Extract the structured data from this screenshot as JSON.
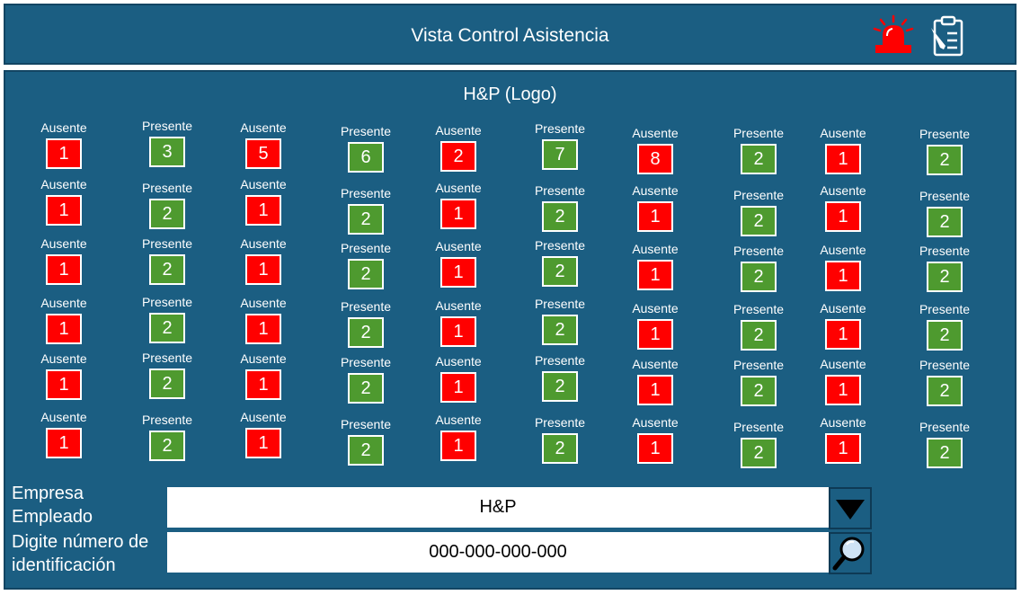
{
  "header": {
    "title": "Vista Control Asistencia",
    "alarm_icon": "alarm-siren-icon",
    "clipboard_icon": "clipboard-edit-icon"
  },
  "main": {
    "logo_text": "H&P (Logo)"
  },
  "colors": {
    "background": "#1b5e82",
    "absent": "#ff0000",
    "present": "#4e9a2f"
  },
  "attendance": {
    "columns": [
      {
        "cells": [
          {
            "status": "Ausente",
            "count": "1"
          },
          {
            "status": "Ausente",
            "count": "1"
          },
          {
            "status": "Ausente",
            "count": "1"
          },
          {
            "status": "Ausente",
            "count": "1"
          },
          {
            "status": "Ausente",
            "count": "1"
          },
          {
            "status": "Ausente",
            "count": "1"
          }
        ]
      },
      {
        "cells": [
          {
            "status": "Presente",
            "count": "3"
          },
          {
            "status": "Presente",
            "count": "2"
          },
          {
            "status": "Presente",
            "count": "2"
          },
          {
            "status": "Presente",
            "count": "2"
          },
          {
            "status": "Presente",
            "count": "2"
          },
          {
            "status": "Presente",
            "count": "2"
          }
        ]
      },
      {
        "cells": [
          {
            "status": "Ausente",
            "count": "5"
          },
          {
            "status": "Ausente",
            "count": "1"
          },
          {
            "status": "Ausente",
            "count": "1"
          },
          {
            "status": "Ausente",
            "count": "1"
          },
          {
            "status": "Ausente",
            "count": "1"
          },
          {
            "status": "Ausente",
            "count": "1"
          }
        ]
      },
      {
        "cells": [
          {
            "status": "Presente",
            "count": "6"
          },
          {
            "status": "Presente",
            "count": "2"
          },
          {
            "status": "Presente",
            "count": "2"
          },
          {
            "status": "Presente",
            "count": "2"
          },
          {
            "status": "Presente",
            "count": "2"
          },
          {
            "status": "Presente",
            "count": "2"
          }
        ]
      },
      {
        "cells": [
          {
            "status": "Ausente",
            "count": "2"
          },
          {
            "status": "Ausente",
            "count": "1"
          },
          {
            "status": "Ausente",
            "count": "1"
          },
          {
            "status": "Ausente",
            "count": "1"
          },
          {
            "status": "Ausente",
            "count": "1"
          },
          {
            "status": "Ausente",
            "count": "1"
          }
        ]
      },
      {
        "cells": [
          {
            "status": "Presente",
            "count": "7"
          },
          {
            "status": "Presente",
            "count": "2"
          },
          {
            "status": "Presente",
            "count": "2"
          },
          {
            "status": "Presente",
            "count": "2"
          },
          {
            "status": "Presente",
            "count": "2"
          },
          {
            "status": "Presente",
            "count": "2"
          }
        ]
      },
      {
        "cells": [
          {
            "status": "Ausente",
            "count": "8"
          },
          {
            "status": "Ausente",
            "count": "1"
          },
          {
            "status": "Ausente",
            "count": "1"
          },
          {
            "status": "Ausente",
            "count": "1"
          },
          {
            "status": "Ausente",
            "count": "1"
          },
          {
            "status": "Ausente",
            "count": "1"
          }
        ]
      },
      {
        "cells": [
          {
            "status": "Presente",
            "count": "2"
          },
          {
            "status": "Presente",
            "count": "2"
          },
          {
            "status": "Presente",
            "count": "2"
          },
          {
            "status": "Presente",
            "count": "2"
          },
          {
            "status": "Presente",
            "count": "2"
          },
          {
            "status": "Presente",
            "count": "2"
          }
        ]
      },
      {
        "cells": [
          {
            "status": "Ausente",
            "count": "1"
          },
          {
            "status": "Ausente",
            "count": "1"
          },
          {
            "status": "Ausente",
            "count": "1"
          },
          {
            "status": "Ausente",
            "count": "1"
          },
          {
            "status": "Ausente",
            "count": "1"
          },
          {
            "status": "Ausente",
            "count": "1"
          }
        ]
      },
      {
        "cells": [
          {
            "status": "Presente",
            "count": "2"
          },
          {
            "status": "Presente",
            "count": "2"
          },
          {
            "status": "Presente",
            "count": "2"
          },
          {
            "status": "Presente",
            "count": "2"
          },
          {
            "status": "Presente",
            "count": "2"
          },
          {
            "status": "Presente",
            "count": "2"
          }
        ]
      }
    ]
  },
  "form": {
    "company_label_line1": "Empresa",
    "company_label_line2": "Empleado",
    "company_value": "H&P",
    "dropdown_icon": "triangle-down-icon",
    "id_label_line1": "Digite número de",
    "id_label_line2": "identificación",
    "id_value": "000-000-000-000",
    "search_icon": "magnifier-icon"
  }
}
